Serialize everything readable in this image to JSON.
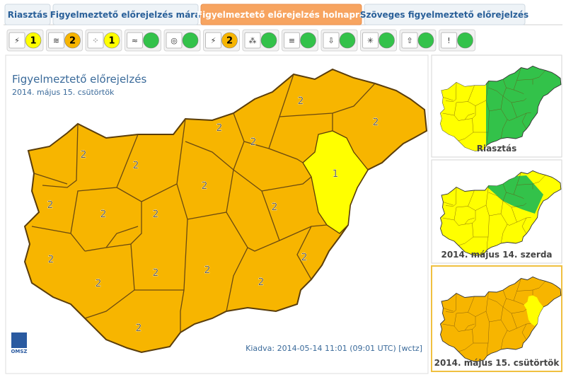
{
  "tabs": [
    "Riasztás",
    "Figyelmeztető előrejelzés mára",
    "Figyelmeztető előrejelzés holnapra",
    "Szöveges figyelmeztető előrejelzés"
  ],
  "colors": {
    "none": "#33c24a",
    "1": "#ffff00",
    "2": "#f7b500"
  },
  "warning_icons": [
    1,
    2,
    1,
    null,
    null,
    2,
    null,
    null,
    null,
    null,
    null,
    null
  ],
  "map": {
    "title": "Figyelmeztető előrejelzés",
    "date": "2014. május 15. csütörtök",
    "regions": [
      2,
      2,
      2,
      2,
      2,
      2,
      2,
      1,
      2,
      2,
      2,
      2,
      2,
      2,
      2,
      2,
      2,
      2,
      2
    ],
    "logo": "OMSZ",
    "issued": "Kiadva: 2014-05-14 11:01 (09:01 UTC) [wctz]"
  },
  "thumbnails": [
    "Riasztás",
    "2014. május 14. szerda",
    "2014. május 15. csütörtök"
  ]
}
